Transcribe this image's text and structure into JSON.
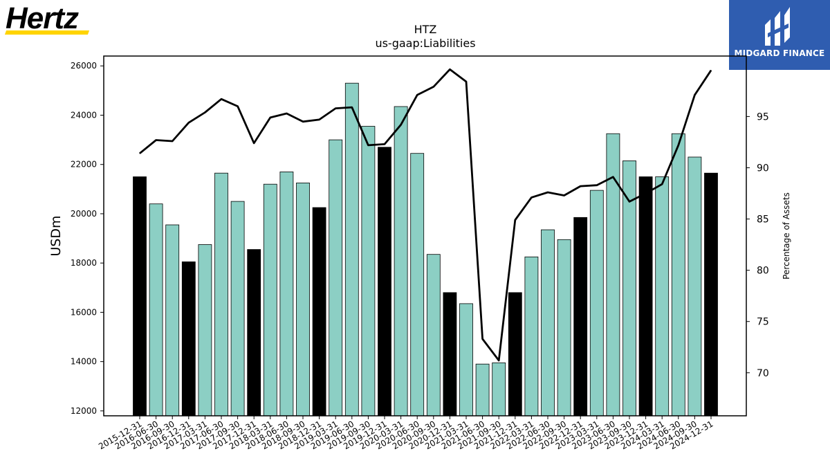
{
  "logos": {
    "left_text": "Hertz",
    "left_accent_color": "#ffd400",
    "right_text": "MIDGARD FINANCE",
    "right_bg_color": "#2f5db0"
  },
  "chart_data": {
    "type": "bar",
    "title": "HTZ",
    "subtitle": "us-gaap:Liabilities",
    "ylabel": "USDm",
    "y2label": "Percentage of Assets",
    "ylim": [
      11800,
      26400
    ],
    "y2lim": [
      65.8,
      100.9
    ],
    "yticks": [
      12000,
      14000,
      16000,
      18000,
      20000,
      22000,
      24000,
      26000
    ],
    "y2ticks": [
      70,
      75,
      80,
      85,
      90,
      95
    ],
    "bar_color": "#8ccfc4",
    "year_end_bar_color": "#000000",
    "line_color": "#000000",
    "categories": [
      "2015-12-31",
      "2016-06-30",
      "2016-09-30",
      "2016-12-31",
      "2017-03-31",
      "2017-06-30",
      "2017-09-30",
      "2017-12-31",
      "2018-03-31",
      "2018-06-30",
      "2018-09-30",
      "2018-12-31",
      "2019-03-31",
      "2019-06-30",
      "2019-09-30",
      "2019-12-31",
      "2020-03-31",
      "2020-06-30",
      "2020-09-30",
      "2020-12-31",
      "2021-03-31",
      "2021-06-30",
      "2021-09-30",
      "2021-12-31",
      "2022-03-31",
      "2022-06-30",
      "2022-09-30",
      "2022-12-31",
      "2023-03-31",
      "2023-06-30",
      "2023-09-30",
      "2023-12-31",
      "2024-03-31",
      "2024-06-30",
      "2024-09-30",
      "2024-12-31"
    ],
    "series": [
      {
        "type": "bar",
        "values": [
          21500,
          20400,
          19550,
          18050,
          18750,
          21650,
          20500,
          18550,
          21200,
          21700,
          21250,
          20250,
          23000,
          25300,
          23550,
          22700,
          24350,
          22450,
          18350,
          16800,
          16350,
          13900,
          13950,
          16800,
          18250,
          19350,
          18950,
          19850,
          20950,
          23250,
          22150,
          21500,
          21500,
          23250,
          22300,
          21650
        ]
      },
      {
        "type": "line",
        "values": [
          91.4,
          92.7,
          92.6,
          94.4,
          95.4,
          96.7,
          96.0,
          92.4,
          94.9,
          95.3,
          94.5,
          94.7,
          95.8,
          95.9,
          92.2,
          92.3,
          94.2,
          97.1,
          97.9,
          99.6,
          98.4,
          73.3,
          71.2,
          84.9,
          87.1,
          87.6,
          87.3,
          88.2,
          88.3,
          89.1,
          86.7,
          87.5,
          88.4,
          92.2,
          97.1,
          99.5
        ]
      }
    ]
  }
}
